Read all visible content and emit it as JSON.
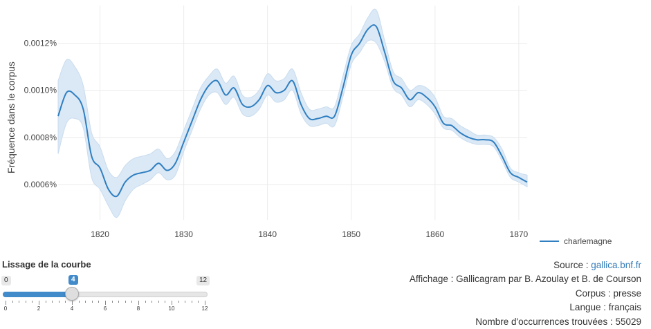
{
  "chart_data": {
    "type": "line",
    "title": "",
    "xlabel": "",
    "ylabel": "Fréquence dans le corpus",
    "xlim": [
      1815,
      1871
    ],
    "ylim": [
      0.00045,
      0.00136
    ],
    "xticks": [
      1820,
      1830,
      1840,
      1850,
      1860,
      1870
    ],
    "xtick_labels": [
      "1820",
      "1830",
      "1840",
      "1850",
      "1860",
      "1870"
    ],
    "yticks": [
      0.0006,
      0.0008,
      0.001,
      0.0012
    ],
    "ytick_labels": [
      "0.0006%",
      "0.0008%",
      "0.0010%",
      "0.0012%"
    ],
    "grid": true,
    "legend_position": "right",
    "series": [
      {
        "name": "charlemagne",
        "color": "#2f7fc1",
        "band_color": "#dbe8f5",
        "x": [
          1815,
          1816,
          1817,
          1818,
          1819,
          1820,
          1821,
          1822,
          1823,
          1824,
          1825,
          1826,
          1827,
          1828,
          1829,
          1830,
          1831,
          1832,
          1833,
          1834,
          1835,
          1836,
          1837,
          1838,
          1839,
          1840,
          1841,
          1842,
          1843,
          1844,
          1845,
          1846,
          1847,
          1848,
          1849,
          1850,
          1851,
          1852,
          1853,
          1854,
          1855,
          1856,
          1857,
          1858,
          1859,
          1860,
          1861,
          1862,
          1863,
          1864,
          1865,
          1866,
          1867,
          1868,
          1869,
          1870,
          1871
        ],
        "y": [
          0.00089,
          0.00099,
          0.00098,
          0.00092,
          0.00072,
          0.00067,
          0.00058,
          0.00055,
          0.00061,
          0.00064,
          0.00065,
          0.00066,
          0.00069,
          0.00066,
          0.00069,
          0.00078,
          0.00087,
          0.00096,
          0.00102,
          0.00104,
          0.00098,
          0.00101,
          0.00094,
          0.00093,
          0.00096,
          0.00102,
          0.00099,
          0.001,
          0.00104,
          0.00094,
          0.00088,
          0.00088,
          0.00089,
          0.00089,
          0.00101,
          0.00115,
          0.0012,
          0.00126,
          0.00127,
          0.00116,
          0.00104,
          0.00101,
          0.00096,
          0.00099,
          0.00097,
          0.00093,
          0.00086,
          0.00085,
          0.00082,
          0.0008,
          0.00079,
          0.00079,
          0.00078,
          0.00072,
          0.00065,
          0.00063,
          0.00061
        ],
        "lower": [
          0.00073,
          0.00086,
          0.00088,
          0.00084,
          0.00063,
          0.00058,
          0.00051,
          0.00046,
          0.00053,
          0.00058,
          0.0006,
          0.00062,
          0.00065,
          0.00062,
          0.00064,
          0.00074,
          0.00083,
          0.00092,
          0.00098,
          0.00099,
          0.00094,
          0.00097,
          0.0009,
          0.00089,
          0.00092,
          0.00098,
          0.00095,
          0.00096,
          0.001,
          0.0009,
          0.00085,
          0.00085,
          0.00086,
          0.00085,
          0.00097,
          0.00111,
          0.00116,
          0.00121,
          0.0012,
          0.00112,
          0.00101,
          0.00098,
          0.00093,
          0.00096,
          0.00094,
          0.0009,
          0.00084,
          0.00083,
          0.0008,
          0.00078,
          0.00077,
          0.00077,
          0.00076,
          0.0007,
          0.00063,
          0.00061,
          0.00059
        ],
        "upper": [
          0.00104,
          0.00113,
          0.0011,
          0.00102,
          0.00082,
          0.00076,
          0.00066,
          0.00063,
          0.00068,
          0.00071,
          0.00072,
          0.00073,
          0.00075,
          0.00071,
          0.00074,
          0.00083,
          0.00092,
          0.00101,
          0.00106,
          0.00109,
          0.00103,
          0.00106,
          0.00098,
          0.00097,
          0.001,
          0.00107,
          0.00104,
          0.00105,
          0.00109,
          0.00099,
          0.00092,
          0.00092,
          0.00093,
          0.00093,
          0.00106,
          0.00119,
          0.00124,
          0.00131,
          0.00134,
          0.00121,
          0.00108,
          0.00105,
          0.001,
          0.00102,
          0.00101,
          0.00097,
          0.00089,
          0.00088,
          0.00085,
          0.00083,
          0.00081,
          0.00081,
          0.0008,
          0.00075,
          0.00067,
          0.00065,
          0.00064
        ]
      }
    ]
  },
  "slider": {
    "title": "Lissage de la courbe",
    "min": 0,
    "max": 12,
    "value": 4,
    "min_label": "0",
    "max_label": "12",
    "value_label": "4",
    "grid_labels": [
      "0",
      "2",
      "4",
      "6",
      "8",
      "10",
      "12"
    ]
  },
  "info": {
    "source_prefix": "Source : ",
    "source_link": "gallica.bnf.fr",
    "display": "Affichage : Gallicagram par B. Azoulay et B. de Courson",
    "corpus": "Corpus : presse",
    "language": "Langue : français",
    "occurrences": "Nombre d'occurrences trouvées : 55029"
  }
}
